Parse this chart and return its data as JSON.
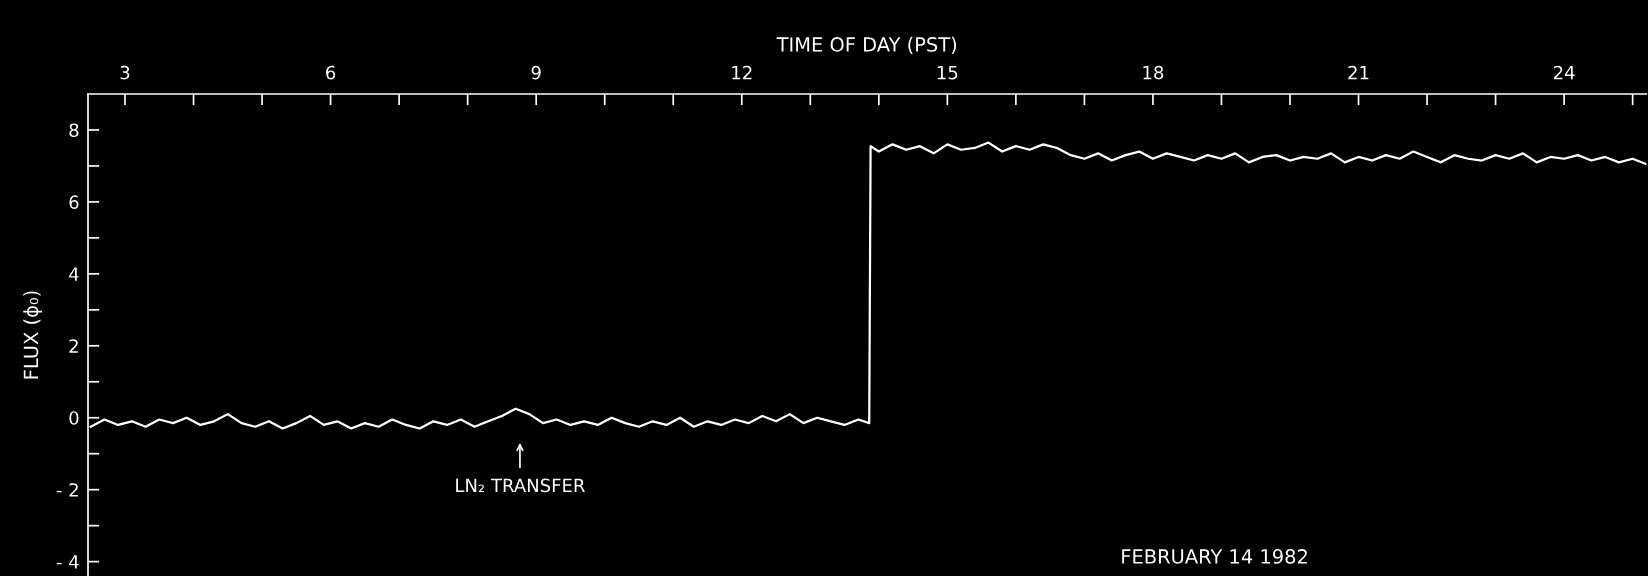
{
  "chart_data": {
    "type": "line",
    "xlabel": "TIME OF DAY (PST)",
    "ylabel": "FLUX (ϕ₀)",
    "x": [
      2.5,
      2.7,
      2.9,
      3.1,
      3.3,
      3.5,
      3.7,
      3.9,
      4.1,
      4.3,
      4.5,
      4.7,
      4.9,
      5.1,
      5.3,
      5.5,
      5.7,
      5.9,
      6.1,
      6.3,
      6.5,
      6.7,
      6.9,
      7.1,
      7.3,
      7.5,
      7.7,
      7.9,
      8.1,
      8.3,
      8.5,
      8.7,
      8.9,
      9.1,
      9.3,
      9.5,
      9.7,
      9.9,
      10.1,
      10.3,
      10.5,
      10.7,
      10.9,
      11.1,
      11.3,
      11.5,
      11.7,
      11.9,
      12.1,
      12.3,
      12.5,
      12.7,
      12.9,
      13.1,
      13.3,
      13.5,
      13.7,
      13.86,
      13.88,
      14.0,
      14.2,
      14.4,
      14.6,
      14.8,
      15.0,
      15.2,
      15.4,
      15.6,
      15.8,
      16.0,
      16.2,
      16.4,
      16.6,
      16.8,
      17.0,
      17.2,
      17.4,
      17.6,
      17.8,
      18.0,
      18.2,
      18.4,
      18.6,
      18.8,
      19.0,
      19.2,
      19.4,
      19.6,
      19.8,
      20.0,
      20.2,
      20.4,
      20.6,
      20.8,
      21.0,
      21.2,
      21.4,
      21.6,
      21.8,
      22.0,
      22.2,
      22.4,
      22.6,
      22.8,
      23.0,
      23.2,
      23.4,
      23.6,
      23.8,
      24.0,
      24.2,
      24.4,
      24.6,
      24.8,
      25.0,
      25.2
    ],
    "series": [
      {
        "color": "#ffffff",
        "values": [
          -0.25,
          -0.05,
          -0.2,
          -0.1,
          -0.25,
          -0.05,
          -0.15,
          0.0,
          -0.2,
          -0.1,
          0.1,
          -0.15,
          -0.25,
          -0.1,
          -0.3,
          -0.15,
          0.05,
          -0.2,
          -0.1,
          -0.3,
          -0.15,
          -0.25,
          -0.05,
          -0.2,
          -0.3,
          -0.1,
          -0.2,
          -0.05,
          -0.25,
          -0.1,
          0.05,
          0.25,
          0.1,
          -0.15,
          -0.05,
          -0.2,
          -0.1,
          -0.2,
          0.0,
          -0.15,
          -0.25,
          -0.1,
          -0.2,
          0.0,
          -0.25,
          -0.1,
          -0.2,
          -0.05,
          -0.15,
          0.05,
          -0.1,
          0.1,
          -0.15,
          0.0,
          -0.1,
          -0.2,
          -0.05,
          -0.15,
          7.55,
          7.4,
          7.6,
          7.45,
          7.55,
          7.35,
          7.6,
          7.45,
          7.5,
          7.65,
          7.4,
          7.55,
          7.45,
          7.6,
          7.5,
          7.3,
          7.2,
          7.35,
          7.15,
          7.3,
          7.4,
          7.2,
          7.35,
          7.25,
          7.15,
          7.3,
          7.2,
          7.35,
          7.1,
          7.25,
          7.3,
          7.15,
          7.25,
          7.2,
          7.35,
          7.1,
          7.25,
          7.15,
          7.3,
          7.2,
          7.4,
          7.25,
          7.1,
          7.3,
          7.2,
          7.15,
          7.3,
          7.2,
          7.35,
          7.1,
          7.25,
          7.2,
          7.3,
          7.15,
          7.25,
          7.1,
          7.2,
          7.05
        ]
      }
    ],
    "xlim": [
      2.46,
      25.2
    ],
    "ylim": [
      -4.4,
      9.0
    ],
    "xticks": [
      3,
      {
        "value": 4,
        "label": null
      },
      {
        "value": 5,
        "label": null
      },
      6,
      {
        "value": 7,
        "label": null
      },
      {
        "value": 8,
        "label": null
      },
      9,
      {
        "value": 10,
        "label": null
      },
      {
        "value": 11,
        "label": null
      },
      12,
      {
        "value": 13,
        "label": null
      },
      {
        "value": 14,
        "label": null
      },
      15,
      {
        "value": 16,
        "label": null
      },
      {
        "value": 17,
        "label": null
      },
      18,
      {
        "value": 19,
        "label": null
      },
      {
        "value": 20,
        "label": null
      },
      21,
      {
        "value": 22,
        "label": null
      },
      {
        "value": 23,
        "label": null
      },
      24,
      {
        "value": 25,
        "label": null
      }
    ],
    "yticks": [
      -4,
      {
        "value": -3,
        "label": null
      },
      -2,
      {
        "value": -1,
        "label": null
      },
      0,
      {
        "value": 1,
        "label": null
      },
      2,
      {
        "value": 3,
        "label": null
      },
      4,
      {
        "value": 5,
        "label": null
      },
      6,
      {
        "value": 7,
        "label": null
      },
      8
    ],
    "grid": false,
    "marker": "none",
    "line_style": "solid",
    "annotations": [
      "LN₂ TRANSFER",
      "FEBRUARY 14 1982"
    ]
  }
}
